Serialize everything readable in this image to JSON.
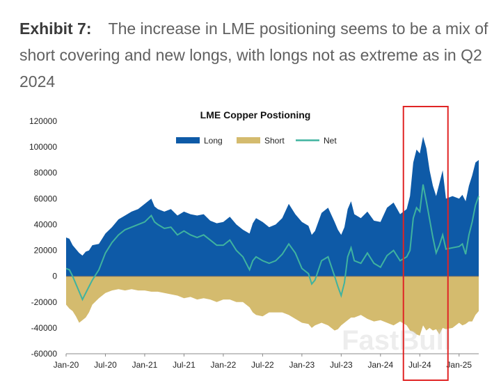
{
  "exhibit": {
    "label": "Exhibit 7:",
    "title": "The increase in LME positioning seems to be a mix of short covering and new longs, with longs not as extreme as in Q2 2024"
  },
  "watermark": "FastBull",
  "colors": {
    "long": "#0e5aa7",
    "short": "#d4bb6e",
    "net": "#3fb39f",
    "highlight": "#e02424",
    "axis": "#888888"
  },
  "chart_data": {
    "type": "area",
    "title": "LME Copper Postioning",
    "xlabel": "",
    "ylabel": "",
    "ylim": [
      -60000,
      120000
    ],
    "yticks": [
      120000,
      100000,
      80000,
      60000,
      40000,
      20000,
      0,
      -20000,
      -40000,
      -60000
    ],
    "ytick_labels": [
      "120000",
      "100000",
      "80000",
      "60000",
      "40000",
      "20000",
      "0",
      "-20000",
      "-40000",
      "-60000"
    ],
    "xlim": [
      0,
      63
    ],
    "xticks": [
      0,
      6,
      12,
      18,
      24,
      30,
      36,
      42,
      48,
      54,
      60
    ],
    "xtick_labels": [
      "Jan-20",
      "Jul-20",
      "Jan-21",
      "Jul-21",
      "Jan-22",
      "Jul-22",
      "Jan-23",
      "Jul-23",
      "Jan-24",
      "Jul-24",
      "Jan-25"
    ],
    "legend": [
      "Long",
      "Short",
      "Net"
    ],
    "legend_position": "top-center",
    "highlight_range": [
      51.5,
      58.3
    ],
    "x": [
      0,
      0.5,
      1,
      1.5,
      2,
      2.5,
      3,
      3.5,
      4,
      5,
      6,
      7,
      8,
      9,
      10,
      11,
      12,
      13,
      13.5,
      14,
      15,
      16,
      17,
      18,
      19,
      20,
      21,
      22,
      23,
      24,
      25,
      26,
      27,
      28,
      28.5,
      29,
      30,
      31,
      32,
      33,
      34,
      35,
      36,
      37,
      37.5,
      38,
      39,
      40,
      41,
      41.5,
      42,
      42.5,
      43,
      43.5,
      44,
      45,
      46,
      47,
      48,
      49,
      50,
      51,
      52,
      52.5,
      53,
      53.5,
      54,
      54.5,
      55,
      55.5,
      56,
      56.5,
      57,
      57.5,
      58,
      59,
      60,
      60.5,
      61,
      61.5,
      62,
      62.5,
      63
    ],
    "series": [
      {
        "name": "Long",
        "values": [
          30000,
          29000,
          24000,
          21000,
          18000,
          16000,
          19000,
          20000,
          24000,
          25000,
          33000,
          38000,
          44000,
          47000,
          50000,
          52000,
          56000,
          60000,
          54000,
          52000,
          50000,
          52000,
          47000,
          50000,
          48000,
          47000,
          48000,
          43000,
          41000,
          42000,
          46000,
          40000,
          36000,
          33000,
          41000,
          45000,
          42000,
          38000,
          40000,
          45000,
          56000,
          48000,
          42000,
          39000,
          32000,
          35000,
          49000,
          53000,
          42000,
          36000,
          32000,
          38000,
          52000,
          58000,
          48000,
          45000,
          50000,
          43000,
          42000,
          53000,
          57000,
          48000,
          52000,
          62000,
          88000,
          98000,
          95000,
          108000,
          99000,
          82000,
          70000,
          62000,
          72000,
          82000,
          60000,
          62000,
          60000,
          63000,
          58000,
          70000,
          78000,
          88000,
          90000
        ]
      },
      {
        "name": "Short",
        "values": [
          -22000,
          -25000,
          -27000,
          -31000,
          -36000,
          -34000,
          -32000,
          -28000,
          -22000,
          -17000,
          -13000,
          -11000,
          -10000,
          -11000,
          -10000,
          -11000,
          -11000,
          -12000,
          -12000,
          -12000,
          -13000,
          -14000,
          -15000,
          -17000,
          -16000,
          -18000,
          -17000,
          -18000,
          -20000,
          -18000,
          -18000,
          -20000,
          -20000,
          -24000,
          -28000,
          -30000,
          -31000,
          -28000,
          -28000,
          -28000,
          -30000,
          -33000,
          -36000,
          -37000,
          -40000,
          -38000,
          -36000,
          -38000,
          -42000,
          -41000,
          -38000,
          -36000,
          -34000,
          -32000,
          -32000,
          -30000,
          -33000,
          -35000,
          -34000,
          -36000,
          -38000,
          -35000,
          -38000,
          -42000,
          -43000,
          -45000,
          -46000,
          -38000,
          -42000,
          -40000,
          -42000,
          -41000,
          -45000,
          -40000,
          -41000,
          -40000,
          -36000,
          -38000,
          -37000,
          -35000,
          -35000,
          -30000,
          -27000
        ]
      },
      {
        "name": "Net",
        "values": [
          6000,
          5000,
          0,
          -6000,
          -12000,
          -18000,
          -13000,
          -8000,
          -3000,
          5000,
          18000,
          26000,
          32000,
          36000,
          38000,
          40000,
          42000,
          47000,
          42000,
          40000,
          37000,
          38000,
          32000,
          35000,
          32000,
          30000,
          32000,
          28000,
          24000,
          24000,
          28000,
          20000,
          15000,
          5000,
          12000,
          15000,
          12000,
          10000,
          12000,
          17000,
          25000,
          18000,
          6000,
          2000,
          -6000,
          -3000,
          12000,
          15000,
          0,
          -8000,
          -15000,
          -5000,
          15000,
          22000,
          12000,
          10000,
          18000,
          10000,
          7000,
          16000,
          20000,
          12000,
          15000,
          20000,
          45000,
          53000,
          50000,
          71000,
          58000,
          44000,
          30000,
          18000,
          24000,
          32000,
          21000,
          22000,
          23000,
          25000,
          17000,
          32000,
          42000,
          55000,
          62000
        ]
      }
    ]
  }
}
